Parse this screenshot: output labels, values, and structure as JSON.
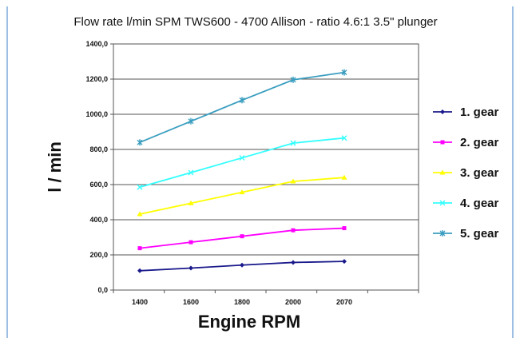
{
  "chart_data": {
    "type": "line",
    "title": "Flow rate l/min SPM TWS600   - 4700 Allison - ratio 4.6:1 3.5\" plunger",
    "xlabel": "Engine RPM",
    "ylabel": "l / min",
    "categories": [
      "1400",
      "1600",
      "1800",
      "2000",
      "2070"
    ],
    "y_ticks": [
      "0,0",
      "200,0",
      "400,0",
      "600,0",
      "800,0",
      "1000,0",
      "1200,0",
      "1400,0"
    ],
    "ylim": [
      0,
      1400
    ],
    "grid": "horizontal",
    "legend_position": "right",
    "series": [
      {
        "name": "1. gear",
        "values": [
          110,
          125,
          142,
          157,
          163
        ],
        "color": "#1a1a8c",
        "marker": "diamond"
      },
      {
        "name": "2. gear",
        "values": [
          238,
          272,
          306,
          340,
          352
        ],
        "color": "#ff00ff",
        "marker": "square"
      },
      {
        "name": "3. gear",
        "values": [
          432,
          494,
          556,
          618,
          640
        ],
        "color": "#ffff00",
        "marker": "triangle"
      },
      {
        "name": "4. gear",
        "values": [
          585,
          668,
          752,
          836,
          865
        ],
        "color": "#33ffff",
        "marker": "x"
      },
      {
        "name": "5. gear",
        "values": [
          840,
          960,
          1080,
          1196,
          1238
        ],
        "color": "#3a9ec0",
        "marker": "star"
      }
    ]
  }
}
